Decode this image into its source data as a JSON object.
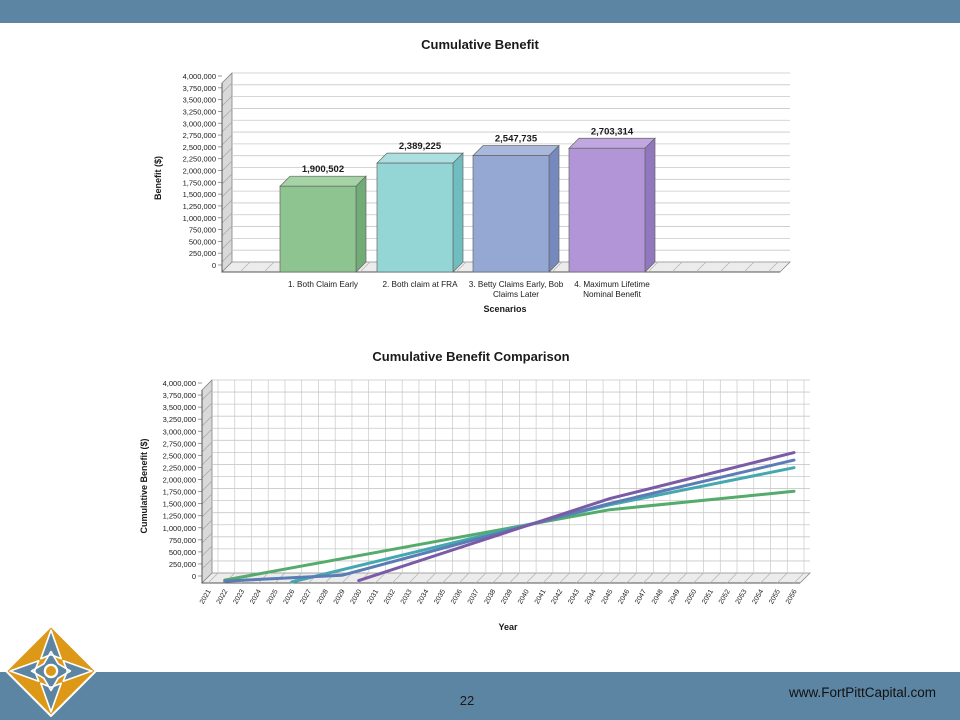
{
  "slide": {
    "page_number": "22",
    "website": "www.FortPittCapital.com",
    "colors": {
      "accent": "#5c85a3",
      "logo_orange": "#dd9818"
    }
  },
  "chart_data": [
    {
      "type": "bar",
      "title": "Cumulative Benefit",
      "xlabel": "Scenarios",
      "ylabel": "Benefit ($)",
      "ylim": [
        0,
        4000000
      ],
      "ytick_step": 250000,
      "yticks": [
        "0",
        "250,000",
        "500,000",
        "750,000",
        "1,000,000",
        "1,250,000",
        "1,500,000",
        "1,750,000",
        "2,000,000",
        "2,250,000",
        "2,500,000",
        "2,750,000",
        "3,000,000",
        "3,250,000",
        "3,500,000",
        "3,750,000",
        "4,000,000"
      ],
      "categories": [
        "1. Both Claim Early",
        "2. Both claim at FRA",
        "3. Betty Claims Early, Bob\nClaims Later",
        "4. Maximum Lifetime\nNominal Benefit"
      ],
      "values": [
        1900502,
        2389225,
        2547735,
        2703314
      ],
      "value_labels": [
        "1,900,502",
        "2,389,225",
        "2,547,735",
        "2,703,314"
      ],
      "bar_colors": [
        {
          "face": "#8dc48f",
          "top": "#a6d3a6",
          "side": "#71ab76"
        },
        {
          "face": "#94d5d6",
          "top": "#abdfe0",
          "side": "#70bdc0"
        },
        {
          "face": "#95a7d3",
          "top": "#aab7dd",
          "side": "#7689bf"
        },
        {
          "face": "#b195d6",
          "top": "#c1a7df",
          "side": "#9177bd"
        }
      ],
      "grid": true,
      "legend": "none"
    },
    {
      "type": "line",
      "title": "Cumulative Benefit Comparison",
      "xlabel": "Year",
      "ylabel": "Cumulative Benefit ($)",
      "ylim": [
        0,
        4000000
      ],
      "ytick_step": 250000,
      "yticks": [
        "0",
        "250,000",
        "500,000",
        "750,000",
        "1,000,000",
        "1,250,000",
        "1,500,000",
        "1,750,000",
        "2,000,000",
        "2,250,000",
        "2,500,000",
        "2,750,000",
        "3,000,000",
        "3,250,000",
        "3,500,000",
        "3,750,000",
        "4,000,000"
      ],
      "x": [
        "2021",
        "2022",
        "2023",
        "2024",
        "2025",
        "2026",
        "2027",
        "2028",
        "2029",
        "2030",
        "2031",
        "2032",
        "2033",
        "2034",
        "2035",
        "2036",
        "2037",
        "2038",
        "2039",
        "2040",
        "2041",
        "2042",
        "2043",
        "2044",
        "2045",
        "2046",
        "2047",
        "2048",
        "2049",
        "2050",
        "2051",
        "2052",
        "2053",
        "2054",
        "2055",
        "2056"
      ],
      "series": [
        {
          "name": "1. Both Claim Early",
          "color": "#55ab6b",
          "points": [
            [
              2022,
              60000
            ],
            [
              2045,
              1520000
            ],
            [
              2056,
              1900502
            ]
          ]
        },
        {
          "name": "2. Both claim at FRA",
          "color": "#45a8b0",
          "points": [
            [
              2026,
              20000
            ],
            [
              2045,
              1620000
            ],
            [
              2056,
              2389225
            ]
          ]
        },
        {
          "name": "3. Betty Claims Early, Bob Claims Later",
          "color": "#5c7cb5",
          "points": [
            [
              2022,
              40000
            ],
            [
              2029,
              160000
            ],
            [
              2045,
              1650000
            ],
            [
              2056,
              2547735
            ]
          ]
        },
        {
          "name": "4. Maximum Lifetime Nominal Benefit",
          "color": "#7a5ba5",
          "points": [
            [
              2030,
              50000
            ],
            [
              2045,
              1750000
            ],
            [
              2056,
              2703314
            ]
          ]
        }
      ],
      "grid": true,
      "legend": "none"
    }
  ]
}
